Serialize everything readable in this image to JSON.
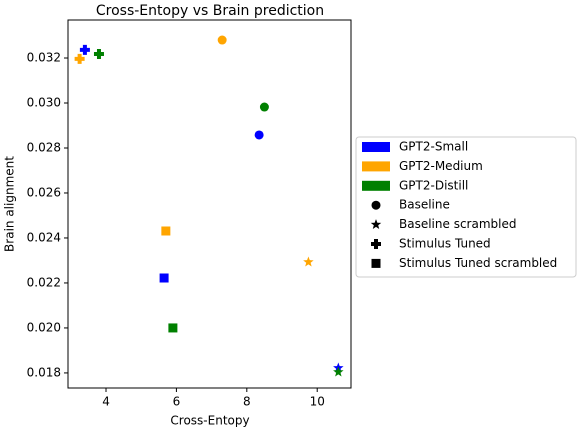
{
  "chart_data": {
    "type": "scatter",
    "title": "Cross-Entopy vs Brain prediction",
    "xlabel": "Cross-Entopy",
    "ylabel": "Brain alignment",
    "xlim": [
      2.92,
      10.96
    ],
    "ylim": [
      0.01733,
      0.03369
    ],
    "xticks": [
      4,
      6,
      8,
      10
    ],
    "yticks": [
      {
        "value": 0.018,
        "label": "0.018"
      },
      {
        "value": 0.02,
        "label": "0.020"
      },
      {
        "value": 0.022,
        "label": "0.022"
      },
      {
        "value": 0.024,
        "label": "0.024"
      },
      {
        "value": 0.026,
        "label": "0.026"
      },
      {
        "value": 0.028,
        "label": "0.028"
      },
      {
        "value": 0.03,
        "label": "0.030"
      },
      {
        "value": 0.032,
        "label": "0.032"
      }
    ],
    "markers": [
      {
        "name": "Baseline",
        "shape": "circle"
      },
      {
        "name": "Baseline scrambled",
        "shape": "star"
      },
      {
        "name": "Stimulus Tuned",
        "shape": "plus"
      },
      {
        "name": "Stimulus Tuned scrambled",
        "shape": "square"
      }
    ],
    "series": [
      {
        "name": "GPT2-Small",
        "color": "#0000ff",
        "x": [
          8.35,
          10.6,
          3.4,
          5.65
        ],
        "values": [
          0.02858,
          0.01822,
          0.03236,
          0.02222
        ]
      },
      {
        "name": "GPT2-Medium",
        "color": "#ffa500",
        "x": [
          7.3,
          9.75,
          3.25,
          5.7
        ],
        "values": [
          0.0328,
          0.02293,
          0.03196,
          0.02431
        ]
      },
      {
        "name": "GPT2-Distill",
        "color": "#008000",
        "x": [
          8.5,
          10.6,
          3.8,
          5.9
        ],
        "values": [
          0.02982,
          0.01804,
          0.03218,
          0.02
        ]
      }
    ]
  }
}
